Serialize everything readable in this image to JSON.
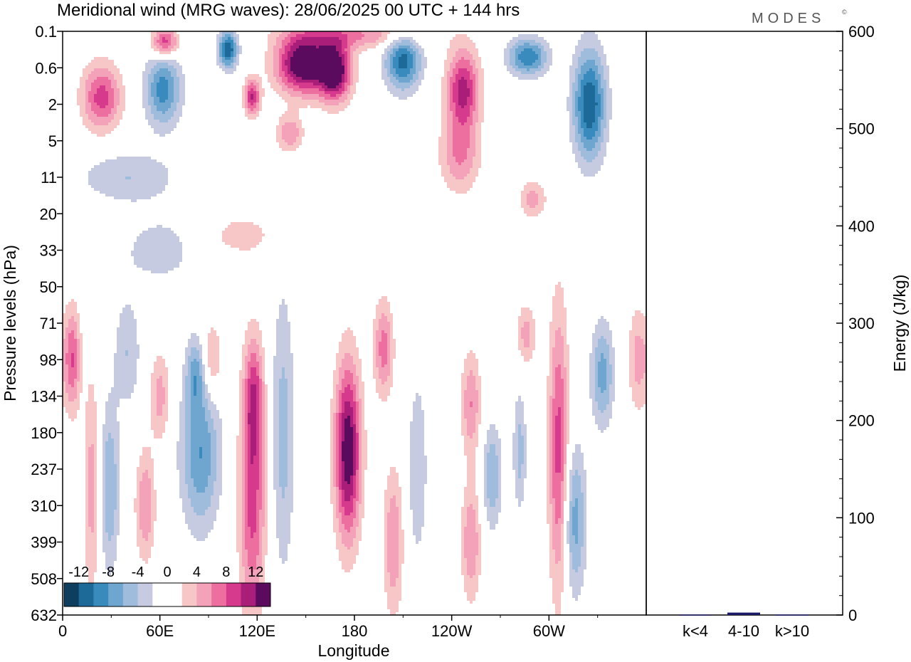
{
  "chart_data": [
    {
      "type": "heatmap",
      "title": "Meridional wind (MRG waves):  28/06/2025  00 UTC  + 144 hrs",
      "xlabel": "Longitude",
      "ylabel": "Pressure levels (hPa)",
      "x_ticks": [
        "0",
        "60E",
        "120E",
        "180",
        "120W",
        "60W"
      ],
      "x_tick_values": [
        0,
        60,
        120,
        180,
        240,
        300
      ],
      "xlim": [
        0,
        360
      ],
      "y_ticks": [
        "0.1",
        "0.6",
        "2",
        "5",
        "11",
        "20",
        "33",
        "50",
        "71",
        "98",
        "134",
        "180",
        "237",
        "310",
        "399",
        "508",
        "632"
      ],
      "y_scale": "log-pressure (levels equally spaced)",
      "colorbar": {
        "labels": [
          "-12",
          "-8",
          "-4",
          "0",
          "4",
          "8",
          "12"
        ],
        "colors": [
          "#0d3e5e",
          "#1d6a98",
          "#3a8bbd",
          "#6ea6cf",
          "#9fbcdc",
          "#c6cbe2",
          "#ffffff",
          "#ffffff",
          "#f7c6c6",
          "#f3a2b9",
          "#ec6fa0",
          "#d63a8c",
          "#a81e79",
          "#5a0b5e"
        ]
      },
      "blobs": [
        {
          "lon": 6,
          "lev": 9.0,
          "r_lon": 5,
          "r_lev": 1.4,
          "value": 8
        },
        {
          "lon": 18,
          "lev": 12.5,
          "r_lon": 5,
          "r_lev": 3.0,
          "value": 5
        },
        {
          "lon": 29,
          "lev": 12.5,
          "r_lon": 6,
          "r_lev": 2.3,
          "value": -6
        },
        {
          "lon": 40,
          "lev": 8.8,
          "r_lon": 8,
          "r_lev": 1.5,
          "value": -4
        },
        {
          "lon": 51,
          "lev": 13.0,
          "r_lon": 6,
          "r_lev": 1.5,
          "value": 6
        },
        {
          "lon": 60,
          "lev": 10.0,
          "r_lon": 6,
          "r_lev": 1.2,
          "value": 5
        },
        {
          "lon": 85,
          "lev": 11.6,
          "r_lon": 12,
          "r_lev": 2.0,
          "value": -8
        },
        {
          "lon": 82,
          "lev": 9.4,
          "r_lon": 6,
          "r_lev": 1.0,
          "value": -6
        },
        {
          "lon": 92,
          "lev": 9.0,
          "r_lon": 6,
          "r_lev": 1.0,
          "value": 5
        },
        {
          "lon": 117,
          "lev": 12.8,
          "r_lon": 8,
          "r_lev": 3.2,
          "value": 9
        },
        {
          "lon": 118,
          "lev": 10.0,
          "r_lon": 6,
          "r_lev": 1.6,
          "value": 7
        },
        {
          "lon": 136,
          "lev": 11.0,
          "r_lon": 7,
          "r_lev": 3.8,
          "value": -5
        },
        {
          "lon": 176,
          "lev": 11.5,
          "r_lon": 8,
          "r_lev": 2.4,
          "value": 14
        },
        {
          "lon": 198,
          "lev": 8.7,
          "r_lon": 6,
          "r_lev": 1.3,
          "value": 7
        },
        {
          "lon": 204,
          "lev": 14.0,
          "r_lon": 6,
          "r_lev": 2.0,
          "value": 6
        },
        {
          "lon": 219,
          "lev": 12.0,
          "r_lon": 6,
          "r_lev": 2.5,
          "value": -4
        },
        {
          "lon": 252,
          "lev": 10.2,
          "r_lon": 6,
          "r_lev": 1.4,
          "value": 6
        },
        {
          "lon": 252,
          "lev": 14.0,
          "r_lon": 6,
          "r_lev": 1.6,
          "value": 6
        },
        {
          "lon": 265,
          "lev": 12.2,
          "r_lon": 6,
          "r_lev": 1.4,
          "value": -6
        },
        {
          "lon": 282,
          "lev": 11.5,
          "r_lon": 4,
          "r_lev": 1.6,
          "value": -5
        },
        {
          "lon": 306,
          "lev": 11.5,
          "r_lon": 6,
          "r_lev": 3.8,
          "value": 9
        },
        {
          "lon": 316,
          "lev": 13.4,
          "r_lon": 7,
          "r_lev": 2.0,
          "value": -7
        },
        {
          "lon": 333,
          "lev": 9.4,
          "r_lon": 7,
          "r_lev": 1.4,
          "value": -7
        },
        {
          "lon": 286,
          "lev": 8.3,
          "r_lon": 6,
          "r_lev": 0.8,
          "value": 5
        },
        {
          "lon": 355,
          "lev": 9.0,
          "r_lon": 6,
          "r_lev": 1.4,
          "value": 5
        },
        {
          "lon": 24,
          "lev": 1.8,
          "r_lon": 12,
          "r_lev": 0.9,
          "value": 9
        },
        {
          "lon": 62,
          "lev": 1.6,
          "r_lon": 11,
          "r_lev": 1.0,
          "value": -9
        },
        {
          "lon": 63,
          "lev": 0.3,
          "r_lon": 8,
          "r_lev": 0.4,
          "value": 10
        },
        {
          "lon": 102,
          "lev": 0.5,
          "r_lon": 6,
          "r_lev": 0.5,
          "value": -12
        },
        {
          "lon": 117,
          "lev": 1.8,
          "r_lon": 5,
          "r_lev": 0.5,
          "value": 10
        },
        {
          "lon": 148,
          "lev": 0.9,
          "r_lon": 16,
          "r_lev": 0.8,
          "value": 15
        },
        {
          "lon": 168,
          "lev": 1.1,
          "r_lon": 10,
          "r_lev": 0.8,
          "value": 14
        },
        {
          "lon": 210,
          "lev": 0.8,
          "r_lon": 11,
          "r_lev": 0.8,
          "value": -11
        },
        {
          "lon": 247,
          "lev": 1.6,
          "r_lon": 10,
          "r_lev": 1.1,
          "value": 11
        },
        {
          "lon": 245,
          "lev": 3.4,
          "r_lon": 12,
          "r_lev": 1.0,
          "value": 6
        },
        {
          "lon": 287,
          "lev": 0.7,
          "r_lon": 12,
          "r_lev": 0.5,
          "value": -10
        },
        {
          "lon": 325,
          "lev": 2.0,
          "r_lon": 10,
          "r_lev": 1.5,
          "value": -12
        },
        {
          "lon": 140,
          "lev": 2.8,
          "r_lon": 8,
          "r_lev": 0.5,
          "value": 6
        },
        {
          "lon": 60,
          "lev": 6.0,
          "r_lon": 25,
          "r_lev": 1.0,
          "value": -3
        },
        {
          "lon": 110,
          "lev": 5.6,
          "r_lon": 22,
          "r_lev": 0.6,
          "value": 3
        },
        {
          "lon": 40,
          "lev": 4.0,
          "r_lon": 30,
          "r_lev": 0.7,
          "value": -4
        },
        {
          "lon": 290,
          "lev": 4.6,
          "r_lon": 8,
          "r_lev": 0.5,
          "value": 5
        },
        {
          "lon": 180,
          "lev": 0.1,
          "r_lon": 40,
          "r_lev": 0.4,
          "value": 6
        }
      ]
    },
    {
      "type": "bar",
      "ylabel": "Energy (J/kg)",
      "categories": [
        "k<4",
        "4-10",
        "k>10"
      ],
      "values": [
        0.5,
        2.5,
        0.5
      ],
      "ylim": [
        0,
        600
      ],
      "y_ticks": [
        "0",
        "100",
        "200",
        "300",
        "400",
        "500",
        "600"
      ],
      "bar_color": "#1a1a66"
    }
  ],
  "logo": {
    "text": "MODES",
    "mark": "©"
  }
}
